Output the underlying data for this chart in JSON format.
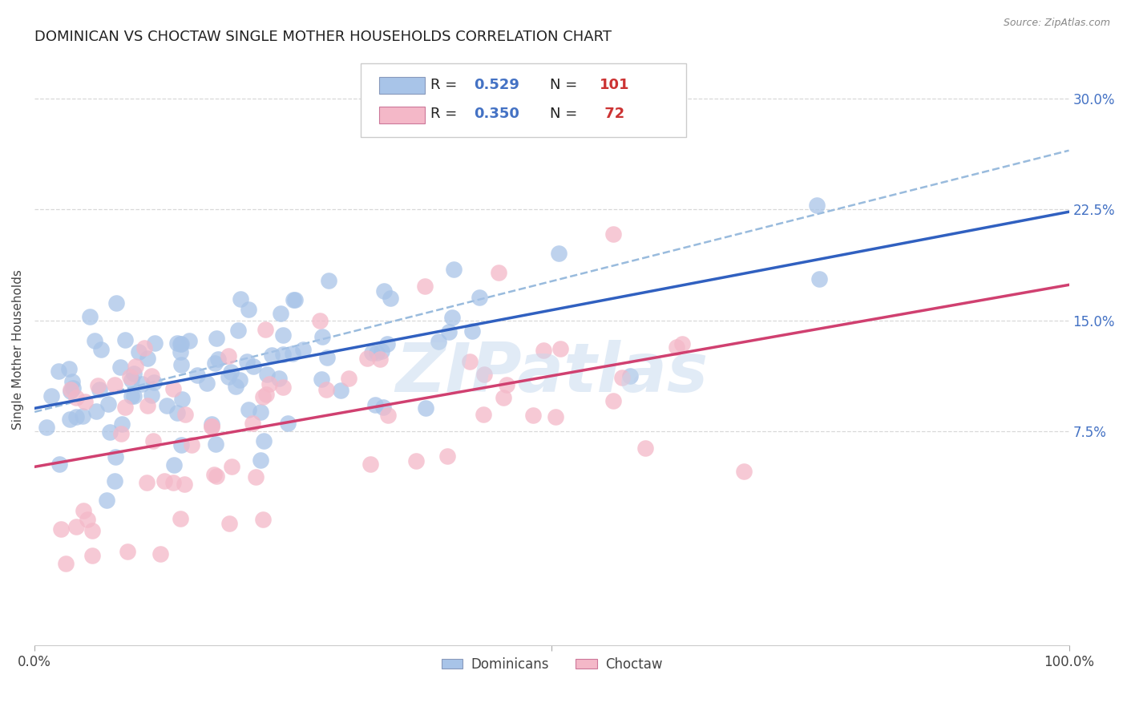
{
  "title": "DOMINICAN VS CHOCTAW SINGLE MOTHER HOUSEHOLDS CORRELATION CHART",
  "source": "Source: ZipAtlas.com",
  "ylabel": "Single Mother Households",
  "xlabel": "",
  "xlim": [
    0.0,
    1.0
  ],
  "ylim": [
    -0.07,
    0.33
  ],
  "yticks": [
    0.075,
    0.15,
    0.225,
    0.3
  ],
  "yticklabels": [
    "7.5%",
    "15.0%",
    "22.5%",
    "30.0%"
  ],
  "dominican_color": "#a8c4e8",
  "choctaw_color": "#f4b8c8",
  "line_dominican_color": "#3060c0",
  "line_choctaw_color": "#d04070",
  "dashed_line_color": "#99bbdd",
  "watermark": "ZIPatlas",
  "legend_R_dominican": "0.529",
  "legend_N_dominican": "101",
  "legend_R_choctaw": "0.350",
  "legend_N_choctaw": "72",
  "background_color": "#ffffff",
  "grid_color": "#d8d8d8",
  "title_fontsize": 13,
  "axis_label_fontsize": 11,
  "tick_fontsize": 12,
  "dominican_seed": 42,
  "choctaw_seed": 99
}
